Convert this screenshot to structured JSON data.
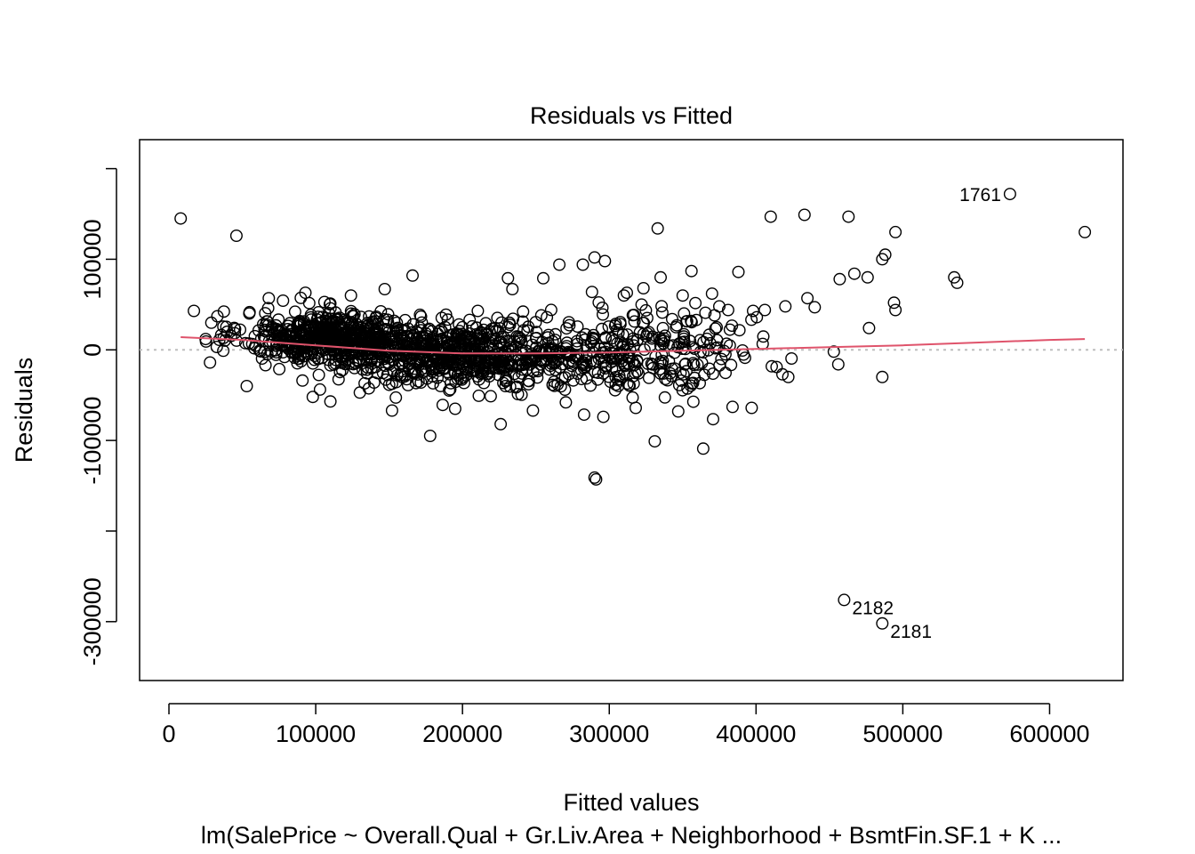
{
  "chart_data": {
    "type": "scatter",
    "title": "Residuals vs Fitted",
    "xlabel": "Fitted values",
    "ylabel": "Residuals",
    "subtitle": "lm(SalePrice ~ Overall.Qual + Gr.Liv.Area + Neighborhood + BsmtFin.SF.1 + K ...",
    "xlim": [
      -20000,
      650000
    ],
    "ylim": [
      -365000,
      232000
    ],
    "x_ticks": [
      0,
      100000,
      200000,
      300000,
      400000,
      500000,
      600000
    ],
    "x_tick_labels": [
      "0",
      "100000",
      "200000",
      "300000",
      "400000",
      "500000",
      "600000"
    ],
    "y_ticks": [
      -300000,
      -200000,
      -100000,
      0,
      100000,
      200000
    ],
    "y_tick_labels": [
      "-300000",
      "",
      "-100000",
      "0",
      "100000",
      ""
    ],
    "grid": false,
    "legend": null,
    "colors": {
      "points": "#000000",
      "smoother": "#DF536B",
      "zero_line": "#BEBEBE"
    },
    "labeled_points": [
      {
        "label": "1761",
        "x": 573000,
        "y": 172000
      },
      {
        "label": "2182",
        "x": 460000,
        "y": -276000
      },
      {
        "label": "2181",
        "x": 486000,
        "y": -302000
      }
    ],
    "outliers": [
      [
        8000,
        145000
      ],
      [
        46000,
        126000
      ],
      [
        17000,
        43000
      ],
      [
        25000,
        12000
      ],
      [
        28000,
        -14000
      ],
      [
        37000,
        -1000
      ],
      [
        53000,
        -40000
      ],
      [
        68000,
        57000
      ],
      [
        93000,
        63000
      ],
      [
        98000,
        -52000
      ],
      [
        110000,
        -57000
      ],
      [
        124000,
        60000
      ],
      [
        147000,
        67000
      ],
      [
        152000,
        -67000
      ],
      [
        166000,
        82000
      ],
      [
        178000,
        -95000
      ],
      [
        195000,
        -65000
      ],
      [
        226000,
        -82000
      ],
      [
        231000,
        79000
      ],
      [
        234000,
        67000
      ],
      [
        248000,
        -67000
      ],
      [
        255000,
        79000
      ],
      [
        266000,
        94000
      ],
      [
        282000,
        94000
      ],
      [
        290000,
        102000
      ],
      [
        290000,
        -141000
      ],
      [
        291000,
        -143000
      ],
      [
        297000,
        98000
      ],
      [
        296000,
        -74000
      ],
      [
        312000,
        63000
      ],
      [
        318000,
        -64000
      ],
      [
        331000,
        -101000
      ],
      [
        333000,
        134000
      ],
      [
        335000,
        80000
      ],
      [
        347000,
        -68000
      ],
      [
        356000,
        87000
      ],
      [
        364000,
        -109000
      ],
      [
        388000,
        86000
      ],
      [
        384000,
        -63000
      ],
      [
        397000,
        -64000
      ],
      [
        410000,
        147000
      ],
      [
        433000,
        149000
      ],
      [
        420000,
        48000
      ],
      [
        435000,
        57000
      ],
      [
        440000,
        47000
      ],
      [
        453000,
        -2000
      ],
      [
        456000,
        -16000
      ],
      [
        457000,
        78000
      ],
      [
        463000,
        147000
      ],
      [
        467000,
        84000
      ],
      [
        476000,
        80000
      ],
      [
        486000,
        100000
      ],
      [
        488000,
        105000
      ],
      [
        494000,
        52000
      ],
      [
        495000,
        130000
      ],
      [
        495000,
        44000
      ],
      [
        486000,
        -30000
      ],
      [
        535000,
        80000
      ],
      [
        537000,
        74000
      ],
      [
        624000,
        130000
      ],
      [
        477000,
        24000
      ],
      [
        414000,
        -19000
      ],
      [
        418000,
        -27000
      ],
      [
        422000,
        -30000
      ],
      [
        398000,
        43000
      ],
      [
        406000,
        44000
      ],
      [
        375000,
        48000
      ],
      [
        350000,
        60000
      ],
      [
        370000,
        62000
      ],
      [
        381000,
        44000
      ],
      [
        310000,
        60000
      ],
      [
        322000,
        50000
      ]
    ],
    "clusters": [
      {
        "center": [
          110000,
          15000
        ],
        "sd": [
          30000,
          14000
        ],
        "n": 520
      },
      {
        "center": [
          195000,
          -5000
        ],
        "sd": [
          42000,
          17000
        ],
        "n": 650
      },
      {
        "center": [
          300000,
          -5000
        ],
        "sd": [
          35000,
          22000
        ],
        "n": 200
      },
      {
        "center": [
          355000,
          0
        ],
        "sd": [
          28000,
          25000
        ],
        "n": 95
      }
    ],
    "smoother": [
      [
        8000,
        14000
      ],
      [
        50000,
        11000
      ],
      [
        100000,
        5000
      ],
      [
        150000,
        -1000
      ],
      [
        200000,
        -4000
      ],
      [
        250000,
        -4000
      ],
      [
        300000,
        -3000
      ],
      [
        350000,
        -1000
      ],
      [
        400000,
        1000
      ],
      [
        450000,
        3000
      ],
      [
        500000,
        5000
      ],
      [
        550000,
        8000
      ],
      [
        600000,
        11000
      ],
      [
        624000,
        12000
      ]
    ]
  }
}
